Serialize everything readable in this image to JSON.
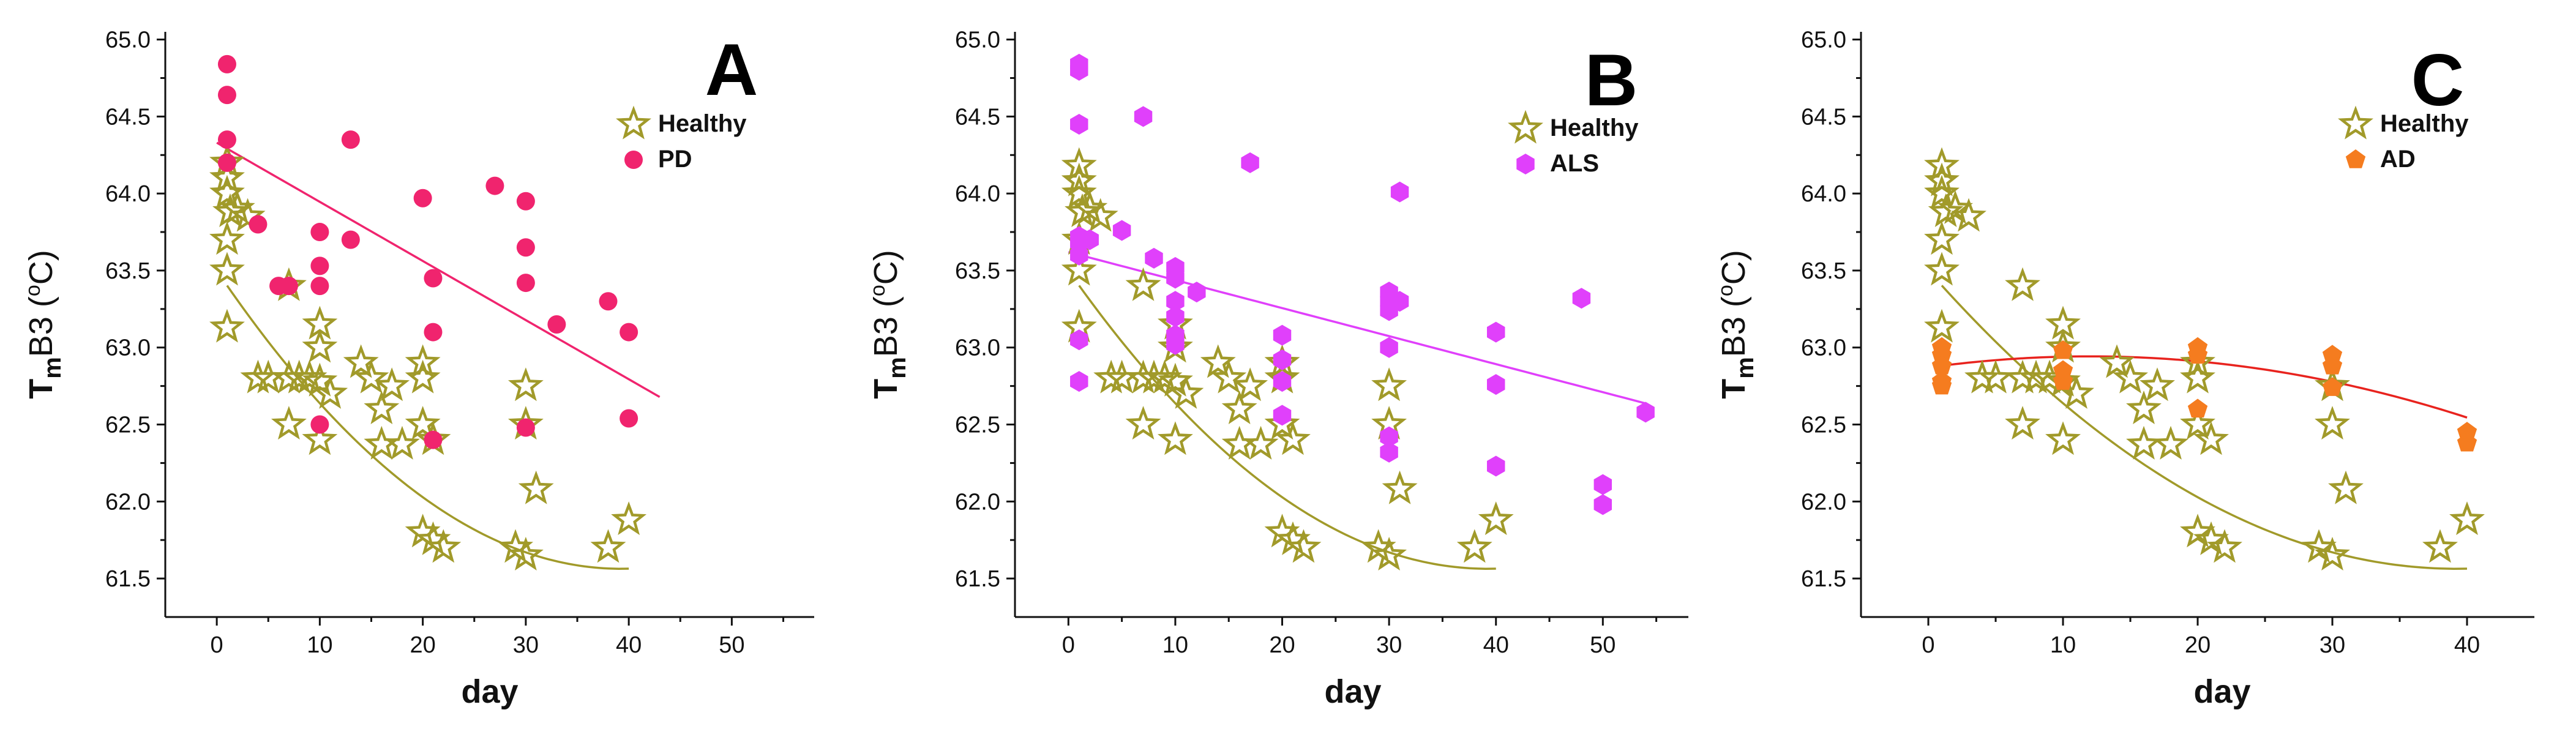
{
  "chart_data": [
    {
      "type": "scatter",
      "panel": "A",
      "xlabel": "day",
      "ylabel_main": "T",
      "ylabel_sub": "m",
      "ylabel_rest": "B3 (",
      "ylabel_sup": "o",
      "ylabel_end": "C)",
      "xlim": [
        -5,
        58
      ],
      "ylim": [
        61.25,
        65.05
      ],
      "xticks": [
        0,
        10,
        20,
        30,
        40,
        50
      ],
      "yticks": [
        61.5,
        62.0,
        62.5,
        63.0,
        63.5,
        64.0,
        64.5,
        65.0
      ],
      "series": [
        {
          "name": "Healthy",
          "marker": "star",
          "color": "#a19a2a",
          "points": [
            [
              1,
              64.2
            ],
            [
              1,
              64.1
            ],
            [
              1,
              64.0
            ],
            [
              1.3,
              63.88
            ],
            [
              1,
              63.7
            ],
            [
              1,
              63.5
            ],
            [
              1,
              63.13
            ],
            [
              2,
              63.9
            ],
            [
              3,
              63.85
            ],
            [
              4,
              62.8
            ],
            [
              5,
              62.8
            ],
            [
              7,
              62.8
            ],
            [
              7,
              62.5
            ],
            [
              7,
              63.4
            ],
            [
              8,
              62.8
            ],
            [
              9,
              62.8
            ],
            [
              10,
              63.15
            ],
            [
              10,
              63.0
            ],
            [
              10,
              62.78
            ],
            [
              10,
              62.4
            ],
            [
              11,
              62.7
            ],
            [
              14,
              62.9
            ],
            [
              15,
              62.8
            ],
            [
              16,
              62.6
            ],
            [
              16,
              62.37
            ],
            [
              17,
              62.75
            ],
            [
              18,
              62.37
            ],
            [
              20,
              62.9
            ],
            [
              20,
              62.8
            ],
            [
              20,
              62.5
            ],
            [
              20,
              61.8
            ],
            [
              21,
              62.4
            ],
            [
              21,
              61.75
            ],
            [
              22,
              61.7
            ],
            [
              29,
              61.7
            ],
            [
              30,
              62.75
            ],
            [
              30,
              62.5
            ],
            [
              30,
              61.65
            ],
            [
              31,
              62.08
            ],
            [
              38,
              61.7
            ],
            [
              40,
              61.88
            ]
          ],
          "fit": {
            "type": "poly2",
            "coeffs": [
              63.5,
              -0.0988,
              0.00126
            ],
            "x_range": [
              1,
              40
            ]
          }
        },
        {
          "name": "PD",
          "marker": "circle",
          "color": "#f0246e",
          "points": [
            [
              1,
              64.84
            ],
            [
              1,
              64.64
            ],
            [
              1,
              64.35
            ],
            [
              1,
              64.2
            ],
            [
              4,
              63.8
            ],
            [
              6,
              63.4
            ],
            [
              7,
              63.4
            ],
            [
              10,
              63.75
            ],
            [
              10,
              63.53
            ],
            [
              10,
              63.4
            ],
            [
              10,
              62.5
            ],
            [
              13,
              64.35
            ],
            [
              13,
              63.7
            ],
            [
              20,
              63.97
            ],
            [
              21,
              63.45
            ],
            [
              21,
              63.1
            ],
            [
              21,
              62.4
            ],
            [
              27,
              64.05
            ],
            [
              30,
              63.95
            ],
            [
              30,
              63.65
            ],
            [
              30,
              63.42
            ],
            [
              30,
              62.48
            ],
            [
              33,
              63.15
            ],
            [
              38,
              63.3
            ],
            [
              40,
              63.1
            ],
            [
              40,
              62.54
            ]
          ],
          "fit": {
            "type": "linear",
            "coeffs": [
              64.33,
              -0.0384
            ],
            "x_range": [
              0,
              43
            ]
          }
        }
      ],
      "legend": "top-right"
    },
    {
      "type": "scatter",
      "panel": "B",
      "xlabel": "day",
      "ylabel_main": "T",
      "ylabel_sub": "m",
      "ylabel_rest": "B3 (",
      "ylabel_sup": "o",
      "ylabel_end": "C)",
      "xlim": [
        -5,
        58
      ],
      "ylim": [
        61.25,
        65.05
      ],
      "xticks": [
        0,
        10,
        20,
        30,
        40,
        50
      ],
      "yticks": [
        61.5,
        62.0,
        62.5,
        63.0,
        63.5,
        64.0,
        64.5,
        65.0
      ],
      "series": [
        {
          "name": "Healthy",
          "marker": "star",
          "color": "#a19a2a",
          "points": [
            [
              1,
              64.18
            ],
            [
              1,
              64.08
            ],
            [
              1,
              64.0
            ],
            [
              1.3,
              63.88
            ],
            [
              1,
              63.7
            ],
            [
              1,
              63.5
            ],
            [
              1,
              63.13
            ],
            [
              2,
              63.9
            ],
            [
              3,
              63.85
            ],
            [
              4,
              62.8
            ],
            [
              5,
              62.8
            ],
            [
              7,
              62.8
            ],
            [
              7,
              62.5
            ],
            [
              7,
              63.4
            ],
            [
              8,
              62.8
            ],
            [
              9,
              62.8
            ],
            [
              10,
              63.15
            ],
            [
              10,
              63.0
            ],
            [
              10,
              62.78
            ],
            [
              10,
              62.4
            ],
            [
              11,
              62.7
            ],
            [
              14,
              62.9
            ],
            [
              15,
              62.8
            ],
            [
              16,
              62.6
            ],
            [
              16,
              62.37
            ],
            [
              17,
              62.75
            ],
            [
              18,
              62.37
            ],
            [
              20,
              62.9
            ],
            [
              20,
              62.8
            ],
            [
              20,
              62.5
            ],
            [
              20,
              61.8
            ],
            [
              21,
              62.4
            ],
            [
              21,
              61.75
            ],
            [
              22,
              61.7
            ],
            [
              29,
              61.7
            ],
            [
              30,
              62.75
            ],
            [
              30,
              62.5
            ],
            [
              30,
              61.65
            ],
            [
              31,
              62.08
            ],
            [
              38,
              61.7
            ],
            [
              40,
              61.88
            ]
          ],
          "fit": {
            "type": "poly2",
            "coeffs": [
              63.5,
              -0.0988,
              0.00126
            ],
            "x_range": [
              1,
              40
            ]
          }
        },
        {
          "name": "ALS",
          "marker": "hexagon",
          "color": "#e040fb",
          "points": [
            [
              1,
              64.84
            ],
            [
              1,
              64.8
            ],
            [
              1,
              64.45
            ],
            [
              1,
              63.72
            ],
            [
              1,
              63.68
            ],
            [
              1,
              63.6
            ],
            [
              1,
              63.05
            ],
            [
              1,
              62.78
            ],
            [
              2,
              63.7
            ],
            [
              5,
              63.76
            ],
            [
              7,
              64.5
            ],
            [
              8,
              63.58
            ],
            [
              10,
              63.52
            ],
            [
              10,
              63.45
            ],
            [
              10,
              63.3
            ],
            [
              10,
              63.2
            ],
            [
              10,
              63.08
            ],
            [
              10,
              63.02
            ],
            [
              12,
              63.36
            ],
            [
              17,
              64.2
            ],
            [
              20,
              63.08
            ],
            [
              20,
              62.92
            ],
            [
              20,
              62.78
            ],
            [
              20,
              62.56
            ],
            [
              30,
              63.36
            ],
            [
              30,
              63.3
            ],
            [
              30,
              63.24
            ],
            [
              30,
              63.0
            ],
            [
              30,
              62.42
            ],
            [
              30,
              62.32
            ],
            [
              31,
              64.01
            ],
            [
              31,
              63.3
            ],
            [
              40,
              63.1
            ],
            [
              40,
              62.76
            ],
            [
              40,
              62.23
            ],
            [
              48,
              63.32
            ],
            [
              50,
              62.11
            ],
            [
              50,
              61.98
            ],
            [
              54,
              62.58
            ]
          ],
          "fit": {
            "type": "linear",
            "coeffs": [
              63.62,
              -0.0182
            ],
            "x_range": [
              0,
              54
            ]
          }
        }
      ],
      "legend": "top-right"
    },
    {
      "type": "scatter",
      "panel": "C",
      "xlabel": "day",
      "ylabel_main": "T",
      "ylabel_sub": "m",
      "ylabel_rest": "B3 (",
      "ylabel_sup": "o",
      "ylabel_end": "C)",
      "xlim": [
        -5,
        45
      ],
      "ylim": [
        61.25,
        65.05
      ],
      "xticks": [
        0,
        10,
        20,
        30,
        40
      ],
      "yticks": [
        61.5,
        62.0,
        62.5,
        63.0,
        63.5,
        64.0,
        64.5,
        65.0
      ],
      "series": [
        {
          "name": "Healthy",
          "marker": "star",
          "color": "#a19a2a",
          "points": [
            [
              1,
              64.18
            ],
            [
              1,
              64.08
            ],
            [
              1,
              64.0
            ],
            [
              1.3,
              63.88
            ],
            [
              1,
              63.7
            ],
            [
              1,
              63.5
            ],
            [
              1,
              63.13
            ],
            [
              2,
              63.9
            ],
            [
              3,
              63.85
            ],
            [
              4,
              62.8
            ],
            [
              5,
              62.8
            ],
            [
              7,
              62.8
            ],
            [
              7,
              62.5
            ],
            [
              7,
              63.4
            ],
            [
              8,
              62.8
            ],
            [
              9,
              62.8
            ],
            [
              10,
              63.15
            ],
            [
              10,
              63.0
            ],
            [
              10,
              62.78
            ],
            [
              10,
              62.4
            ],
            [
              11,
              62.7
            ],
            [
              14,
              62.9
            ],
            [
              15,
              62.8
            ],
            [
              16,
              62.6
            ],
            [
              16,
              62.37
            ],
            [
              17,
              62.75
            ],
            [
              18,
              62.37
            ],
            [
              20,
              62.9
            ],
            [
              20,
              62.8
            ],
            [
              20,
              62.5
            ],
            [
              20,
              61.8
            ],
            [
              21,
              62.4
            ],
            [
              21,
              61.75
            ],
            [
              22,
              61.7
            ],
            [
              29,
              61.7
            ],
            [
              30,
              62.75
            ],
            [
              30,
              62.5
            ],
            [
              30,
              61.65
            ],
            [
              31,
              62.08
            ],
            [
              38,
              61.7
            ],
            [
              40,
              61.88
            ]
          ],
          "fit": {
            "type": "poly2",
            "coeffs": [
              63.5,
              -0.0988,
              0.00126
            ],
            "x_range": [
              1,
              40
            ]
          }
        },
        {
          "name": "AD",
          "marker": "pentagon",
          "color": "#f57c1f",
          "points": [
            [
              1,
              63.0
            ],
            [
              1,
              62.95
            ],
            [
              1,
              62.88
            ],
            [
              1,
              62.78
            ],
            [
              1,
              62.75
            ],
            [
              10,
              62.98
            ],
            [
              10,
              62.85
            ],
            [
              10,
              62.78
            ],
            [
              20,
              63.0
            ],
            [
              20,
              62.95
            ],
            [
              20,
              62.6
            ],
            [
              30,
              62.95
            ],
            [
              30,
              62.88
            ],
            [
              30,
              62.74
            ],
            [
              40,
              62.45
            ],
            [
              40,
              62.38
            ]
          ],
          "fit": {
            "type": "poly2",
            "coeffs": [
              62.87,
              0.01212,
              -0.000506
            ],
            "x_range": [
              1,
              40
            ],
            "color": "#e8231e"
          }
        }
      ],
      "legend": "top-right"
    }
  ]
}
